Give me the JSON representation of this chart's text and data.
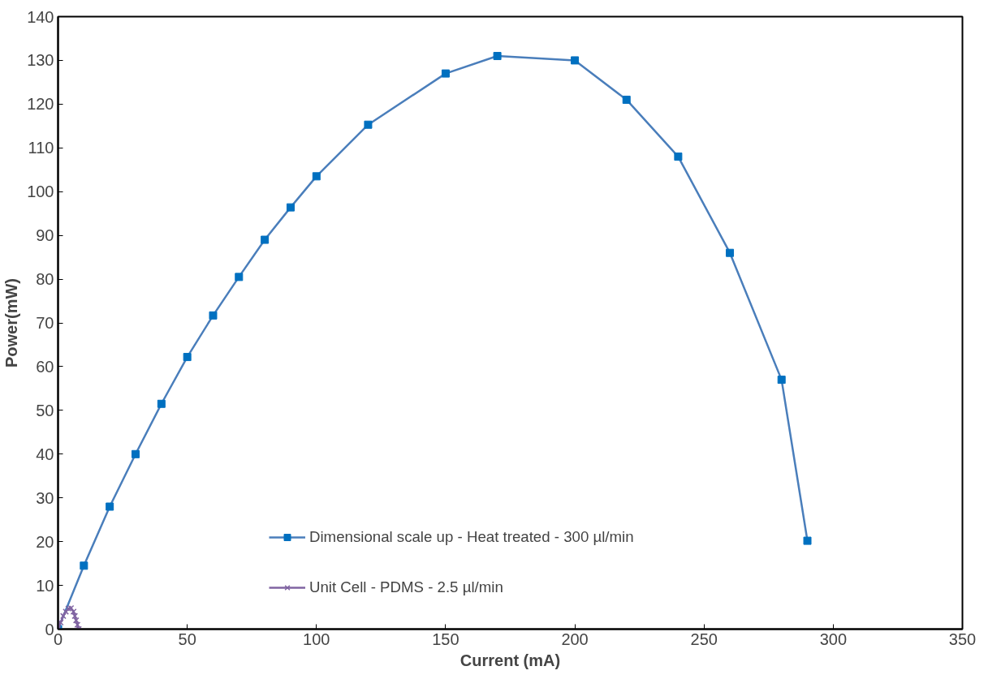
{
  "chart_data": {
    "type": "line",
    "xlabel": "Current (mA)",
    "ylabel": "Power(mW)",
    "xlim": [
      0,
      350
    ],
    "xticks": [
      0,
      50,
      100,
      150,
      200,
      250,
      300,
      350
    ],
    "ylim": [
      0,
      140
    ],
    "yticks": [
      0,
      10,
      20,
      30,
      40,
      50,
      60,
      70,
      80,
      90,
      100,
      110,
      120,
      130,
      140
    ],
    "grid": false,
    "legend": "bottom",
    "series": [
      {
        "name": "Dimensional scale up - Heat treated - 300 µl/min",
        "color": "#4a7ebb",
        "marker": "square",
        "x": [
          0,
          10,
          20,
          30,
          40,
          50,
          60,
          70,
          80,
          90,
          100,
          120,
          150,
          170,
          200,
          220,
          240,
          260,
          280,
          290
        ],
        "values": [
          0,
          14.5,
          28,
          40,
          51.5,
          62.2,
          71.7,
          80.5,
          89,
          96.4,
          103.5,
          115.3,
          127,
          131,
          130,
          121,
          108,
          86,
          57,
          20.2
        ]
      },
      {
        "name": "Unit Cell - PDMS - 2.5 µl/min",
        "color": "#8064a2",
        "marker": "cross",
        "x": [
          0,
          1,
          2,
          3,
          4,
          5,
          6,
          6.5,
          7,
          7.5,
          8
        ],
        "values": [
          0,
          1.5,
          3,
          4,
          4.7,
          4.8,
          4,
          3,
          2,
          1,
          0
        ]
      }
    ]
  }
}
